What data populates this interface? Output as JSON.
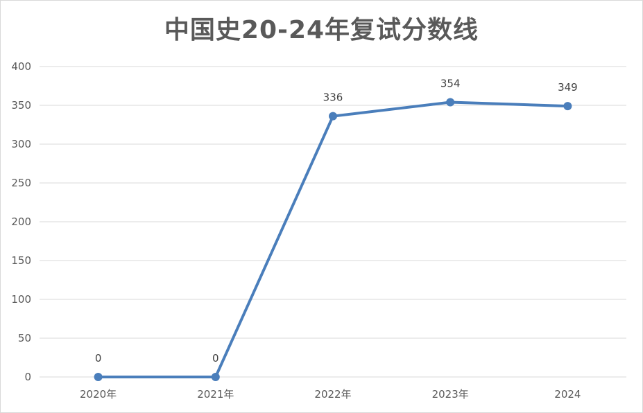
{
  "chart_data": {
    "type": "line",
    "title": "中国史20-24年复试分数线",
    "categories": [
      "2020年",
      "2021年",
      "2022年",
      "2023年",
      "2024"
    ],
    "series": [
      {
        "values": [
          0,
          0,
          336,
          354,
          349
        ]
      }
    ],
    "data_labels": [
      "0",
      "0",
      "336",
      "354",
      "349"
    ],
    "yticks": [
      "0",
      "50",
      "100",
      "150",
      "200",
      "250",
      "300",
      "350",
      "400"
    ],
    "ylim": [
      0,
      400
    ],
    "grid": true,
    "legend": "none",
    "xlabel": "",
    "ylabel": "",
    "colors": {
      "line": "#4a7ebb",
      "grid": "#d9d9d9",
      "text": "#595959"
    }
  }
}
